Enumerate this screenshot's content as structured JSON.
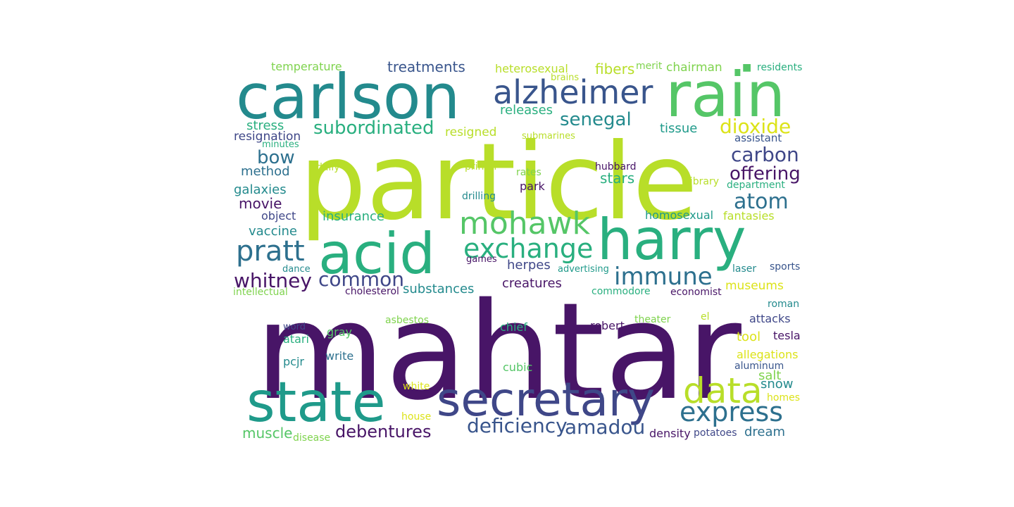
{
  "palette": {
    "deep_purple": "#481567",
    "indigo": "#3f4788",
    "blue": "#39558c",
    "steel": "#2d708e",
    "teal": "#238a8d",
    "sea": "#1f9a8a",
    "green": "#29af7f",
    "lime_green": "#55c667",
    "light_green": "#7fd34e",
    "yellow_green": "#b8de29",
    "yellow": "#dce319"
  },
  "words": [
    {
      "text": "mahtar",
      "color": "#481567"
    },
    {
      "text": "particle",
      "color": "#b8de29"
    },
    {
      "text": "carlson",
      "color": "#238a8d"
    },
    {
      "text": "rain",
      "color": "#55c667"
    },
    {
      "text": "harry",
      "color": "#29af7f"
    },
    {
      "text": "acid",
      "color": "#29af7f"
    },
    {
      "text": "state",
      "color": "#1f9a8a"
    },
    {
      "text": "secretary",
      "color": "#3f4788"
    },
    {
      "text": "alzheimer",
      "color": "#39558c"
    },
    {
      "text": "mohawk",
      "color": "#55c667"
    },
    {
      "text": "exchange",
      "color": "#29af7f"
    },
    {
      "text": "data",
      "color": "#b8de29"
    },
    {
      "text": "express",
      "color": "#2d708e"
    },
    {
      "text": "immune",
      "color": "#2d708e"
    },
    {
      "text": "pratt",
      "color": "#2d708e"
    },
    {
      "text": "deficiency",
      "color": "#39558c"
    },
    {
      "text": "amadou",
      "color": "#39558c"
    },
    {
      "text": "whitney",
      "color": "#481567"
    },
    {
      "text": "common",
      "color": "#3f4788"
    },
    {
      "text": "senegal",
      "color": "#238a8d"
    },
    {
      "text": "subordinated",
      "color": "#29af7f"
    },
    {
      "text": "dioxide",
      "color": "#dce319"
    },
    {
      "text": "carbon",
      "color": "#3f4788"
    },
    {
      "text": "offering",
      "color": "#481567"
    },
    {
      "text": "atom",
      "color": "#2d708e"
    },
    {
      "text": "debentures",
      "color": "#481567"
    },
    {
      "text": "bow",
      "color": "#2d708e"
    },
    {
      "text": "treatments",
      "color": "#39558c"
    },
    {
      "text": "fibers",
      "color": "#b8de29"
    },
    {
      "text": "releases",
      "color": "#29af7f"
    },
    {
      "text": "temperature",
      "color": "#7fd34e"
    },
    {
      "text": "heterosexual",
      "color": "#b8de29"
    },
    {
      "text": "chairman",
      "color": "#7fd34e"
    },
    {
      "text": "merit",
      "color": "#7fd34e"
    },
    {
      "text": "residents",
      "color": "#29af7f"
    },
    {
      "text": "■",
      "color": "#55c667"
    },
    {
      "text": "brains",
      "color": "#b8de29"
    },
    {
      "text": "stress",
      "color": "#29af7f"
    },
    {
      "text": "resignation",
      "color": "#3f4788"
    },
    {
      "text": "resigned",
      "color": "#b8de29"
    },
    {
      "text": "tissue",
      "color": "#1f9a8a"
    },
    {
      "text": "submarines",
      "color": "#b8de29"
    },
    {
      "text": "assistant",
      "color": "#39558c"
    },
    {
      "text": "minutes",
      "color": "#29af7f"
    },
    {
      "text": "method",
      "color": "#2d708e"
    },
    {
      "text": "daily",
      "color": "#b8de29"
    },
    {
      "text": "printer",
      "color": "#b8de29"
    },
    {
      "text": "rates",
      "color": "#7fd34e"
    },
    {
      "text": "hubbard",
      "color": "#481567"
    },
    {
      "text": "stars",
      "color": "#29af7f"
    },
    {
      "text": "library",
      "color": "#b8de29"
    },
    {
      "text": "department",
      "color": "#29af7f"
    },
    {
      "text": "galaxies",
      "color": "#238a8d"
    },
    {
      "text": "drilling",
      "color": "#238a8d"
    },
    {
      "text": "park",
      "color": "#481567"
    },
    {
      "text": "movie",
      "color": "#481567"
    },
    {
      "text": "object",
      "color": "#3f4788"
    },
    {
      "text": "insurance",
      "color": "#29af7f"
    },
    {
      "text": "homosexual",
      "color": "#1f9a8a"
    },
    {
      "text": "fantasies",
      "color": "#b8de29"
    },
    {
      "text": "vaccine",
      "color": "#238a8d"
    },
    {
      "text": "herpes",
      "color": "#3f4788"
    },
    {
      "text": "games",
      "color": "#481567"
    },
    {
      "text": "dance",
      "color": "#238a8d"
    },
    {
      "text": "advertising",
      "color": "#1f9a8a"
    },
    {
      "text": "laser",
      "color": "#238a8d"
    },
    {
      "text": "sports",
      "color": "#39558c"
    },
    {
      "text": "intellectual",
      "color": "#7fd34e"
    },
    {
      "text": "cholesterol",
      "color": "#481567"
    },
    {
      "text": "substances",
      "color": "#238a8d"
    },
    {
      "text": "creatures",
      "color": "#481567"
    },
    {
      "text": "commodore",
      "color": "#29af7f"
    },
    {
      "text": "economist",
      "color": "#481567"
    },
    {
      "text": "museums",
      "color": "#dce319"
    },
    {
      "text": "roman",
      "color": "#238a8d"
    },
    {
      "text": "word",
      "color": "#3f4788"
    },
    {
      "text": "asbestos",
      "color": "#7fd34e"
    },
    {
      "text": "chief",
      "color": "#29af7f"
    },
    {
      "text": "theater",
      "color": "#7fd34e"
    },
    {
      "text": "el",
      "color": "#b8de29"
    },
    {
      "text": "attacks",
      "color": "#3f4788"
    },
    {
      "text": "gray",
      "color": "#55c667"
    },
    {
      "text": "atari",
      "color": "#29af7f"
    },
    {
      "text": "robert",
      "color": "#481567"
    },
    {
      "text": "tool",
      "color": "#dce319"
    },
    {
      "text": "tesla",
      "color": "#481567"
    },
    {
      "text": "allegations",
      "color": "#dce319"
    },
    {
      "text": "write",
      "color": "#2d708e"
    },
    {
      "text": "pcjr",
      "color": "#238a8d"
    },
    {
      "text": "cubic",
      "color": "#55c667"
    },
    {
      "text": "aluminum",
      "color": "#39558c"
    },
    {
      "text": "salt",
      "color": "#7fd34e"
    },
    {
      "text": "white",
      "color": "#dce319"
    },
    {
      "text": "snow",
      "color": "#238a8d"
    },
    {
      "text": "homes",
      "color": "#dce319"
    },
    {
      "text": "house",
      "color": "#dce319"
    },
    {
      "text": "muscle",
      "color": "#55c667"
    },
    {
      "text": "disease",
      "color": "#7fd34e"
    },
    {
      "text": "density",
      "color": "#481567"
    },
    {
      "text": "potatoes",
      "color": "#3f4788"
    },
    {
      "text": "dream",
      "color": "#2d708e"
    }
  ]
}
